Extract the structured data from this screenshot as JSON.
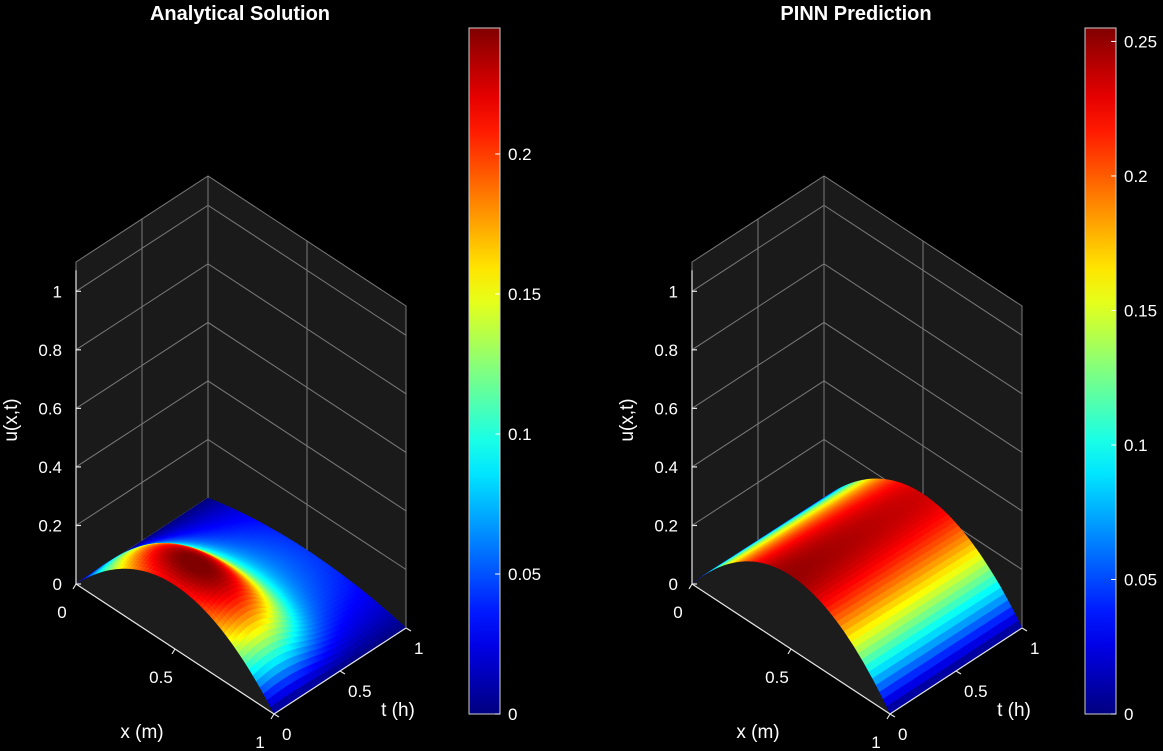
{
  "chart_data": [
    {
      "type": "surface",
      "title": "Analytical Solution",
      "xlabel": "x (m)",
      "ylabel": "t (h)",
      "zlabel": "u(x,t)",
      "xlim": [
        0,
        1
      ],
      "ylim": [
        0,
        1
      ],
      "zlim": [
        0,
        1.1
      ],
      "x_ticks": [
        "0",
        "0.5",
        "1"
      ],
      "y_ticks": [
        "0",
        "0.5",
        "1"
      ],
      "z_ticks": [
        "0",
        "0.2",
        "0.4",
        "0.6",
        "0.8",
        "1"
      ],
      "colormap": "jet",
      "colorbar_limits": [
        0,
        0.245
      ],
      "colorbar_ticks": [
        "0",
        "0.05",
        "0.1",
        "0.15",
        "0.2"
      ],
      "surface": {
        "formula": "u(x,t) = x(1-x) * (1 - 0.55 t) * (0.35 + 0.65 exp(-((t-0.2)/0.32)^2)) / norm",
        "samples": [
          {
            "x": 0.5,
            "t": 0.0,
            "u": 0.215
          },
          {
            "x": 0.5,
            "t": 0.2,
            "u": 0.245
          },
          {
            "x": 0.5,
            "t": 0.5,
            "u": 0.17
          },
          {
            "x": 0.5,
            "t": 1.0,
            "u": 0.1
          },
          {
            "x": 0.0,
            "t": 0.5,
            "u": 0.0
          },
          {
            "x": 1.0,
            "t": 0.5,
            "u": 0.0
          }
        ]
      },
      "grid": true
    },
    {
      "type": "surface",
      "title": "PINN Prediction",
      "xlabel": "x (m)",
      "ylabel": "t (h)",
      "zlabel": "u(x,t)",
      "xlim": [
        0,
        1
      ],
      "ylim": [
        0,
        1
      ],
      "zlim": [
        0,
        1.1
      ],
      "x_ticks": [
        "0",
        "0.5",
        "1"
      ],
      "y_ticks": [
        "0",
        "0.5",
        "1"
      ],
      "z_ticks": [
        "0",
        "0.2",
        "0.4",
        "0.6",
        "0.8",
        "1"
      ],
      "colormap": "jet",
      "colorbar_limits": [
        0,
        0.255
      ],
      "colorbar_ticks": [
        "0",
        "0.05",
        "0.1",
        "0.15",
        "0.2",
        "0.25"
      ],
      "surface": {
        "formula": "u(x,t) = x(1-x) with peak approx 0.25 at x=0.5, nearly constant in t",
        "samples": [
          {
            "x": 0.5,
            "t": 0.0,
            "u": 0.25
          },
          {
            "x": 0.5,
            "t": 0.5,
            "u": 0.24
          },
          {
            "x": 0.5,
            "t": 1.0,
            "u": 0.235
          },
          {
            "x": 0.25,
            "t": 0.5,
            "u": 0.18
          },
          {
            "x": 0.0,
            "t": 0.5,
            "u": 0.0
          },
          {
            "x": 1.0,
            "t": 0.5,
            "u": 0.0
          }
        ]
      },
      "grid": true
    }
  ]
}
